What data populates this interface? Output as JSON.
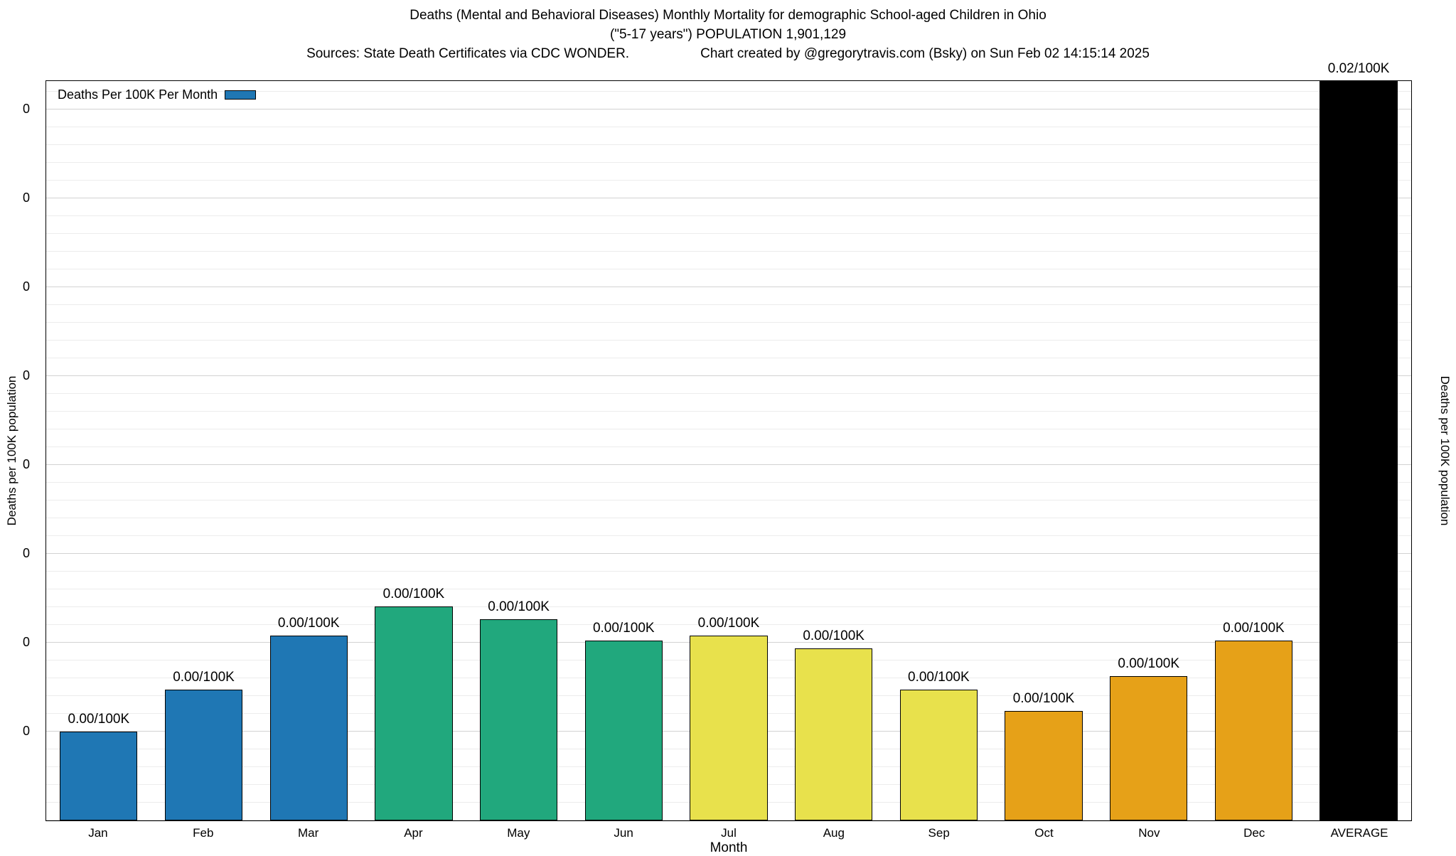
{
  "header": {
    "title_line1": "Deaths (Mental and Behavioral Diseases) Monthly Mortality for demographic School-aged Children in Ohio",
    "title_line2": "(\"5-17 years\") POPULATION 1,901,129",
    "source_text": "Sources: State Death Certificates via CDC WONDER.",
    "credit_text": "Chart created by @gregorytravis.com (Bsky) on Sun Feb 02 14:15:14 2025"
  },
  "legend": {
    "label": "Deaths Per 100K Per Month",
    "swatch_color": "#1f77b4"
  },
  "axes": {
    "ylabel_left": "Deaths per 100K population",
    "ylabel_right": "Deaths per 100K population",
    "xlabel": "Month",
    "ytick_label": "0",
    "ytick_count": 8
  },
  "chart_data": {
    "type": "bar",
    "title": "Deaths (Mental and Behavioral Diseases) Monthly Mortality for demographic School-aged Children in Ohio (\"5-17 years\") POPULATION 1,901,129",
    "xlabel": "Month",
    "ylabel": "Deaths per 100K population",
    "categories": [
      "Jan",
      "Feb",
      "Mar",
      "Apr",
      "May",
      "Jun",
      "Jul",
      "Aug",
      "Sep",
      "Oct",
      "Nov",
      "Dec",
      "AVERAGE"
    ],
    "bar_labels": [
      "0.00/100K",
      "0.00/100K",
      "0.00/100K",
      "0.00/100K",
      "0.00/100K",
      "0.00/100K",
      "0.00/100K",
      "0.00/100K",
      "0.00/100K",
      "0.00/100K",
      "0.00/100K",
      "0.00/100K",
      "0.02/100K"
    ],
    "values_per_100k": [
      0.0,
      0.0,
      0.0,
      0.0,
      0.0,
      0.0,
      0.0,
      0.0,
      0.0,
      0.0,
      0.0,
      0.0,
      0.02
    ],
    "height_fractions": [
      0.12,
      0.177,
      0.25,
      0.289,
      0.272,
      0.243,
      0.25,
      0.233,
      0.177,
      0.148,
      0.195,
      0.243,
      1.0
    ],
    "colors": [
      "#1f77b4",
      "#1f77b4",
      "#1f77b4",
      "#21a87d",
      "#21a87d",
      "#21a87d",
      "#e8e14c",
      "#e8e14c",
      "#e8e14c",
      "#e6a118",
      "#e6a118",
      "#e6a118",
      "#000000"
    ],
    "grid": true,
    "legend_position": "top-left",
    "ytick_labels_all_display": "0"
  }
}
